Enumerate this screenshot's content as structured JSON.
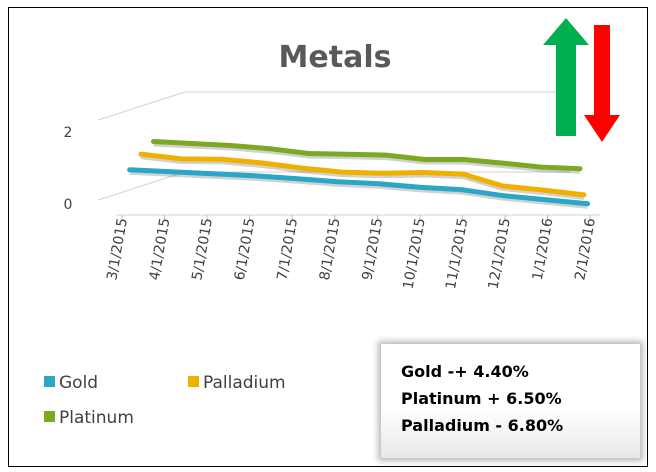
{
  "chart_data": {
    "type": "line",
    "view": "3d-perspective",
    "title": "Metals",
    "categories": [
      "3/1/2015",
      "4/1/2015",
      "5/1/2015",
      "6/1/2015",
      "7/1/2015",
      "8/1/2015",
      "9/1/2015",
      "10/1/2015",
      "11/1/2015",
      "12/1/2015",
      "1/1/2016",
      "2/1/2016"
    ],
    "series": [
      {
        "name": "Gold",
        "color": "#2aa6c6",
        "values": [
          1.0,
          0.95,
          0.9,
          0.85,
          0.78,
          0.7,
          0.65,
          0.56,
          0.5,
          0.35,
          0.25,
          0.15
        ]
      },
      {
        "name": "Palladium",
        "color": "#f0b000",
        "values": [
          1.2,
          1.08,
          1.07,
          0.98,
          0.85,
          0.75,
          0.72,
          0.74,
          0.7,
          0.4,
          0.3,
          0.18
        ]
      },
      {
        "name": "Platinum",
        "color": "#7da821",
        "values": [
          1.3,
          1.25,
          1.2,
          1.12,
          1.0,
          0.98,
          0.96,
          0.85,
          0.85,
          0.76,
          0.66,
          0.62
        ]
      }
    ],
    "y_ticks": [
      "0",
      "2"
    ],
    "ylim": [
      0,
      2
    ],
    "legend_position": "bottom-left",
    "grid": false
  },
  "annotation": {
    "lines": [
      "Gold  -+ 4.40%",
      "Platinum  + 6.50%",
      "Palladium  - 6.80%"
    ]
  },
  "arrows": {
    "up_color": "#00b050",
    "down_color": "#ff0000"
  }
}
